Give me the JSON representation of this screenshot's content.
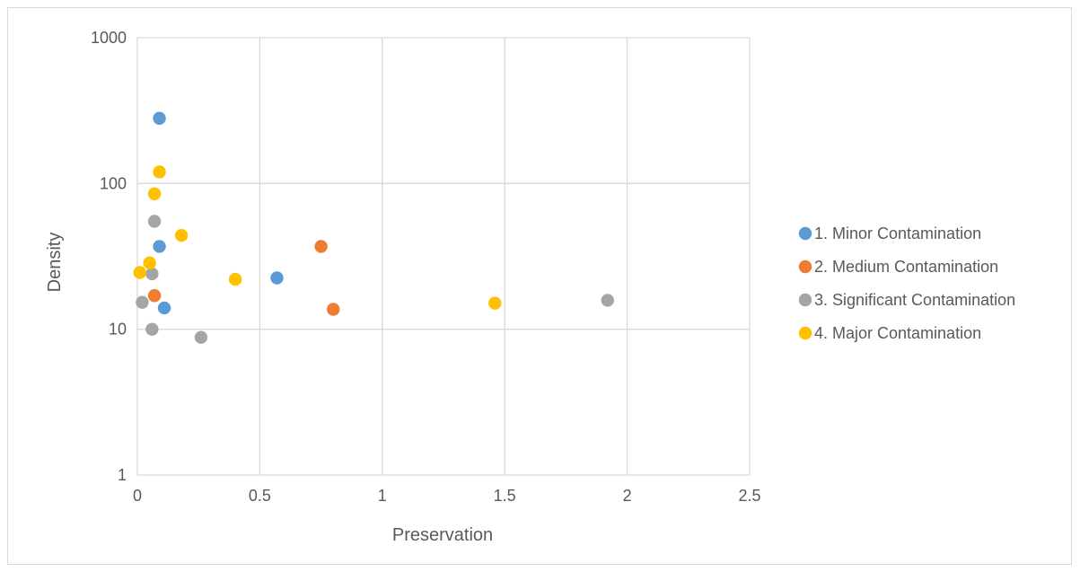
{
  "chart_data": {
    "type": "scatter",
    "title": "",
    "xlabel": "Preservation",
    "ylabel": "Density",
    "xlim": [
      0,
      2.5
    ],
    "ylim": [
      1,
      1000
    ],
    "yscale": "log",
    "grid": true,
    "legend_position": "right",
    "x_ticks": [
      "0",
      "0.5",
      "1",
      "1.5",
      "2",
      "2.5"
    ],
    "y_ticks": [
      "1",
      "10",
      "100",
      "1000"
    ],
    "x_tick_values": [
      0,
      0.5,
      1,
      1.5,
      2,
      2.5
    ],
    "y_tick_values": [
      1,
      10,
      100,
      1000
    ],
    "series": [
      {
        "name": "1. Minor Contamination",
        "color": "#5b9bd5",
        "points": [
          [
            0.09,
            280
          ],
          [
            0.09,
            37
          ],
          [
            0.11,
            14
          ],
          [
            0.57,
            22.5
          ]
        ]
      },
      {
        "name": "2. Medium Contamination",
        "color": "#ed7d31",
        "points": [
          [
            0.07,
            17
          ],
          [
            0.75,
            37
          ],
          [
            0.8,
            13.7
          ]
        ]
      },
      {
        "name": "3. Significant Contamination",
        "color": "#a5a5a5",
        "points": [
          [
            0.07,
            55
          ],
          [
            0.06,
            24
          ],
          [
            0.02,
            15.3
          ],
          [
            0.06,
            10
          ],
          [
            0.26,
            8.8
          ],
          [
            1.92,
            15.8
          ]
        ]
      },
      {
        "name": "4. Major Contamination",
        "color": "#ffc000",
        "points": [
          [
            0.09,
            120
          ],
          [
            0.07,
            85
          ],
          [
            0.18,
            44
          ],
          [
            0.05,
            28.5
          ],
          [
            0.01,
            24.5
          ],
          [
            0.4,
            22
          ],
          [
            1.46,
            15.1
          ]
        ]
      }
    ]
  }
}
